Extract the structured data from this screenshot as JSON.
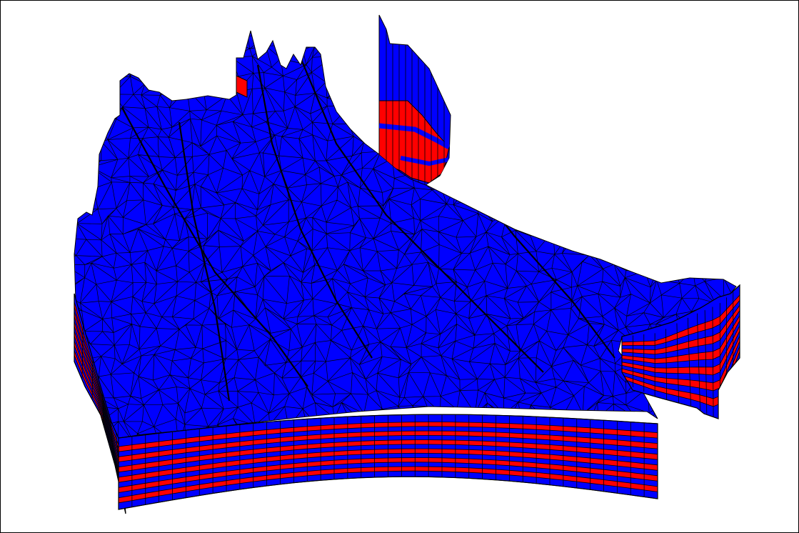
{
  "colors": {
    "background": "#ffffff",
    "surface": "#0000ff",
    "layer_alt": "#ff0000",
    "edge": "#000000",
    "frame": "#000000"
  },
  "model": {
    "icon": "3d-mesh-geological-model",
    "layer_count": 12
  }
}
